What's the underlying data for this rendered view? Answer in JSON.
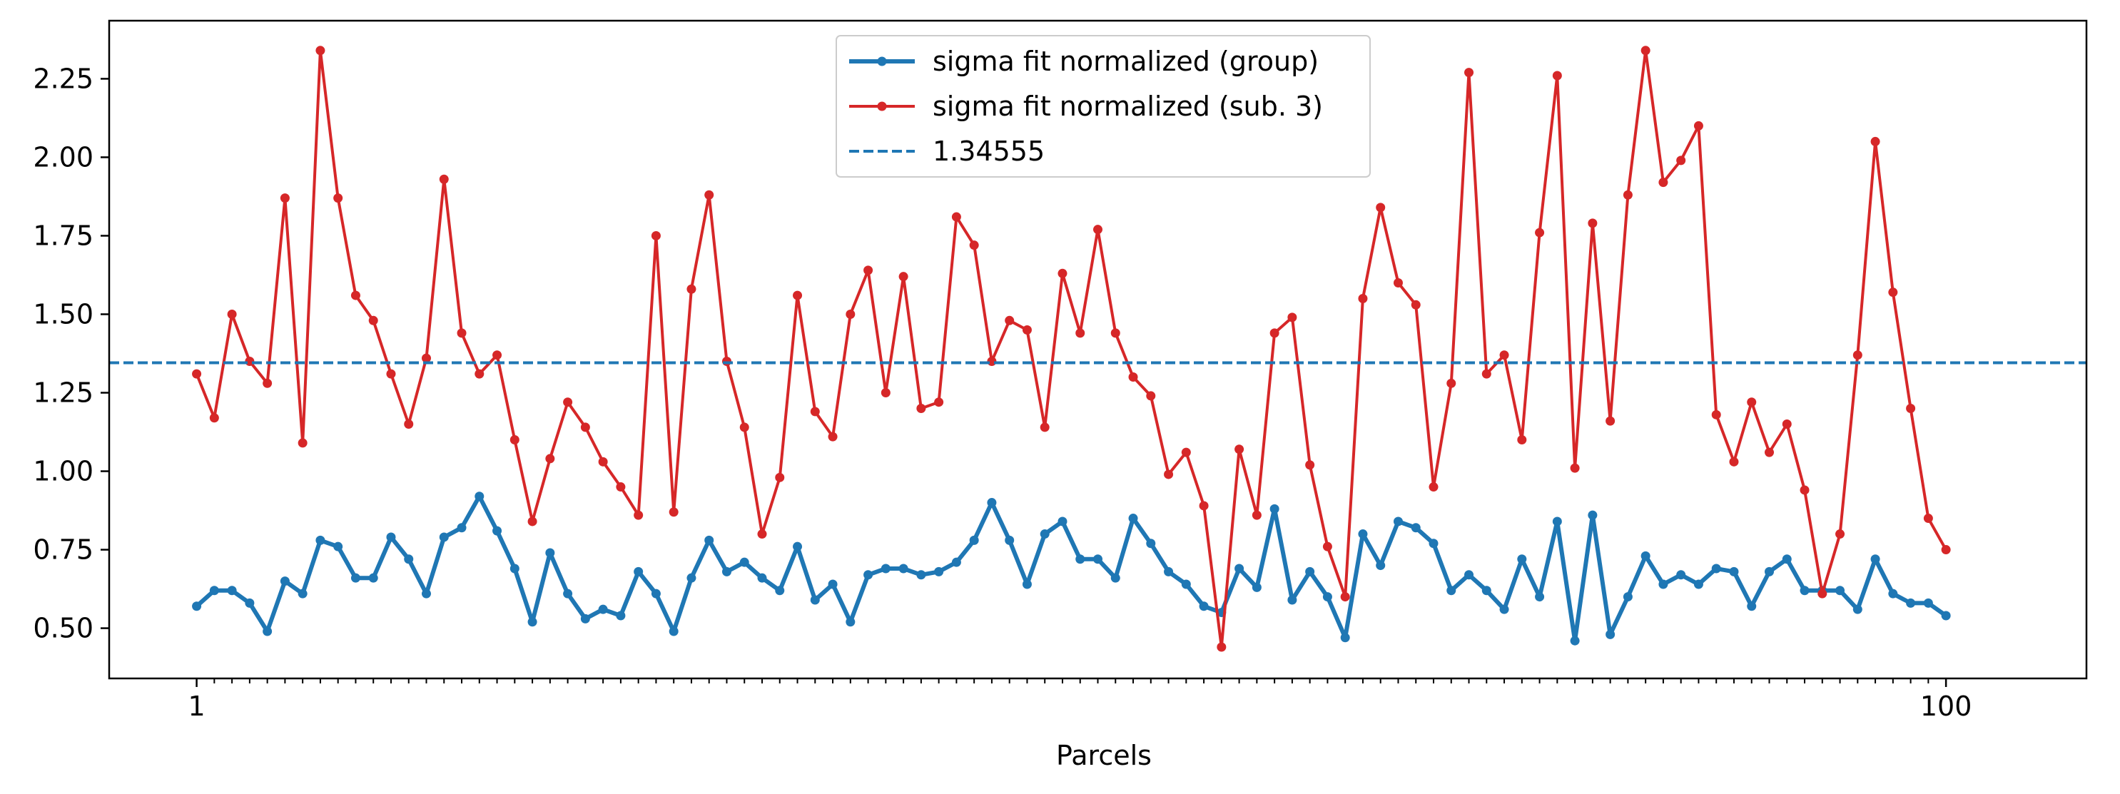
{
  "chart_data": {
    "type": "line",
    "title": "",
    "xlabel": "Parcels",
    "ylabel": "",
    "xlim": [
      -3.95,
      107.95
    ],
    "ylim": [
      0.34,
      2.435
    ],
    "x_tick_labels": [
      {
        "x": 1,
        "label": "1"
      },
      {
        "x": 100,
        "label": "100"
      }
    ],
    "y_ticks": [
      0.5,
      0.75,
      1.0,
      1.25,
      1.5,
      1.75,
      2.0,
      2.25
    ],
    "y_tick_labels": [
      "0.50",
      "0.75",
      "1.00",
      "1.25",
      "1.50",
      "1.75",
      "2.00",
      "2.25"
    ],
    "x": [
      1,
      2,
      3,
      4,
      5,
      6,
      7,
      8,
      9,
      10,
      11,
      12,
      13,
      14,
      15,
      16,
      17,
      18,
      19,
      20,
      21,
      22,
      23,
      24,
      25,
      26,
      27,
      28,
      29,
      30,
      31,
      32,
      33,
      34,
      35,
      36,
      37,
      38,
      39,
      40,
      41,
      42,
      43,
      44,
      45,
      46,
      47,
      48,
      49,
      50,
      51,
      52,
      53,
      54,
      55,
      56,
      57,
      58,
      59,
      60,
      61,
      62,
      63,
      64,
      65,
      66,
      67,
      68,
      69,
      70,
      71,
      72,
      73,
      74,
      75,
      76,
      77,
      78,
      79,
      80,
      81,
      82,
      83,
      84,
      85,
      86,
      87,
      88,
      89,
      90,
      91,
      92,
      93,
      94,
      95,
      96,
      97,
      98,
      99,
      100
    ],
    "series": [
      {
        "name": "sigma fit normalized (group)",
        "color": "#1f77b4",
        "marker": "circle",
        "values": [
          0.57,
          0.62,
          0.62,
          0.58,
          0.49,
          0.65,
          0.61,
          0.78,
          0.76,
          0.66,
          0.66,
          0.79,
          0.72,
          0.61,
          0.79,
          0.82,
          0.92,
          0.81,
          0.69,
          0.52,
          0.74,
          0.61,
          0.53,
          0.56,
          0.54,
          0.68,
          0.61,
          0.49,
          0.66,
          0.78,
          0.68,
          0.71,
          0.66,
          0.62,
          0.76,
          0.59,
          0.64,
          0.52,
          0.67,
          0.69,
          0.69,
          0.67,
          0.68,
          0.71,
          0.78,
          0.9,
          0.78,
          0.64,
          0.8,
          0.84,
          0.72,
          0.72,
          0.66,
          0.85,
          0.77,
          0.68,
          0.64,
          0.57,
          0.55,
          0.69,
          0.63,
          0.88,
          0.59,
          0.68,
          0.6,
          0.47,
          0.8,
          0.7,
          0.84,
          0.82,
          0.77,
          0.62,
          0.67,
          0.62,
          0.56,
          0.72,
          0.6,
          0.84,
          0.46,
          0.86,
          0.48,
          0.6,
          0.73,
          0.64,
          0.67,
          0.64,
          0.69,
          0.68,
          0.57,
          0.68,
          0.72,
          0.62,
          0.62,
          0.62,
          0.56,
          0.72,
          0.61,
          0.58,
          0.58,
          0.54
        ]
      },
      {
        "name": "sigma fit normalized (sub. 3)",
        "color": "#d62728",
        "marker": "circle",
        "values": [
          1.31,
          1.17,
          1.5,
          1.35,
          1.28,
          1.87,
          1.09,
          2.34,
          1.87,
          1.56,
          1.48,
          1.31,
          1.15,
          1.36,
          1.93,
          1.44,
          1.31,
          1.37,
          1.1,
          0.84,
          1.04,
          1.22,
          1.14,
          1.03,
          0.95,
          0.86,
          1.75,
          0.87,
          1.58,
          1.88,
          1.35,
          1.14,
          0.8,
          0.98,
          1.56,
          1.19,
          1.11,
          1.5,
          1.64,
          1.25,
          1.62,
          1.2,
          1.22,
          1.81,
          1.72,
          1.35,
          1.48,
          1.45,
          1.14,
          1.63,
          1.44,
          1.77,
          1.44,
          1.3,
          1.24,
          0.99,
          1.06,
          0.89,
          0.44,
          1.07,
          0.86,
          1.44,
          1.49,
          1.02,
          0.76,
          0.6,
          1.55,
          1.84,
          1.6,
          1.53,
          0.95,
          1.28,
          2.27,
          1.31,
          1.37,
          1.1,
          1.76,
          2.26,
          1.01,
          1.79,
          1.16,
          1.88,
          2.34,
          1.92,
          1.99,
          2.1,
          1.18,
          1.03,
          1.22,
          1.06,
          1.15,
          0.94,
          0.61,
          0.8,
          1.37,
          2.05,
          1.57,
          1.2,
          0.85,
          0.75
        ]
      },
      {
        "name": "1.34555",
        "color": "#1f77b4",
        "style": "dashed",
        "constant": 1.34555
      }
    ],
    "legend_position": "upper-center",
    "grid": false
  }
}
